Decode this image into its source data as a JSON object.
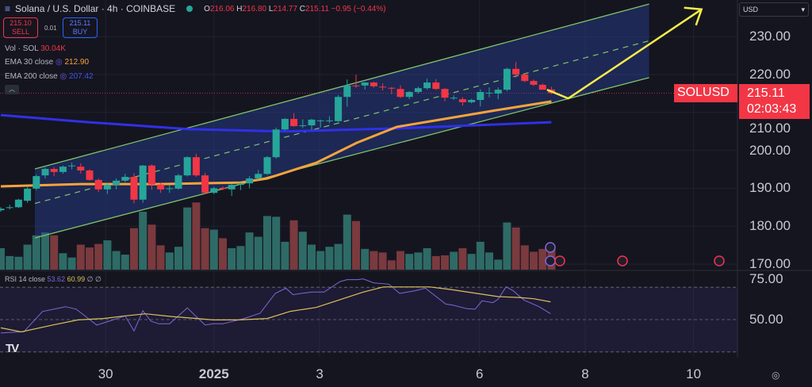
{
  "header": {
    "symbol": "Solana / U.S. Dollar · 4h · COINBASE",
    "o_label": "O",
    "o": "216.06",
    "h_label": "H",
    "h": "216.80",
    "l_label": "L",
    "l": "214.77",
    "c_label": "C",
    "c": "215.11",
    "change": "−0.95 (−0.44%)"
  },
  "trade": {
    "sell_price": "215.10",
    "sell_label": "SELL",
    "spread": "0.01",
    "buy_price": "215.11",
    "buy_label": "BUY"
  },
  "indicators": {
    "vol_label": "Vol · SOL",
    "vol_value": "30.04K",
    "ema30_label": "EMA 30 close",
    "ema30_value": "212.90",
    "ema200_label": "EMA 200 close",
    "ema200_value": "207.42",
    "rsi_label": "RSI 14 close",
    "rsi_value": "53.62",
    "rsi_ma_value": "60.99",
    "rsi_extra": "∅ ∅"
  },
  "currency": "USD",
  "price_tag": {
    "symbol": "SOLUSD",
    "price": "215.11",
    "countdown": "02:03:43"
  },
  "colors": {
    "up": "#26a69a",
    "down": "#f23645",
    "ema30": "#f7a43b",
    "ema200": "#3030e8",
    "channel": "#7fc56a",
    "arrow": "#f5ec4a",
    "rsi": "#7e68d8",
    "rsi_ma": "#d9c25a"
  },
  "icons": [
    "menu-icon",
    "market-status-icon",
    "settings-icon",
    "collapse-icon",
    "tradingview-logo",
    "us-flag-icon",
    "event-icon"
  ],
  "chart_data": {
    "type": "candlestick",
    "interval": "4h",
    "price_axis": {
      "ticks": [
        "230.00",
        "220.00",
        "210.00",
        "200.00",
        "190.00",
        "180.00",
        "170.00"
      ],
      "range": [
        168,
        241
      ]
    },
    "time_axis": {
      "ticks": [
        {
          "label": "30",
          "index": 11.8
        },
        {
          "label": "2025",
          "index": 24
        },
        {
          "label": "3",
          "index": 35.9
        },
        {
          "label": "6",
          "index": 53.9
        },
        {
          "label": "8",
          "index": 65.8
        },
        {
          "label": "10",
          "index": 78
        }
      ]
    },
    "ohlc": [
      [
        184.2,
        185.0,
        183.8,
        184.6
      ],
      [
        185.0,
        185.6,
        184.4,
        185.0
      ],
      [
        185.0,
        187.2,
        184.8,
        187.0
      ],
      [
        186.7,
        190.6,
        186.2,
        189.9
      ],
      [
        189.9,
        193.6,
        189.5,
        193.2
      ],
      [
        193.4,
        195.5,
        192.6,
        195.1
      ],
      [
        195.1,
        195.6,
        193.2,
        194.3
      ],
      [
        194.3,
        196.0,
        193.8,
        195.7
      ],
      [
        195.8,
        196.8,
        195.0,
        196.0
      ],
      [
        195.7,
        196.6,
        193.9,
        194.7
      ],
      [
        194.7,
        195.0,
        192.0,
        192.2
      ],
      [
        192.2,
        192.6,
        189.0,
        189.7
      ],
      [
        189.7,
        191.5,
        188.5,
        190.9
      ],
      [
        190.9,
        192.6,
        189.7,
        192.0
      ],
      [
        192.0,
        193.8,
        191.6,
        193.0
      ],
      [
        193.0,
        194.0,
        186.0,
        187.0
      ],
      [
        187.0,
        196.1,
        186.2,
        196.0
      ],
      [
        196.0,
        196.3,
        189.6,
        191.0
      ],
      [
        191.0,
        191.4,
        188.8,
        189.7
      ],
      [
        189.8,
        190.8,
        188.8,
        190.0
      ],
      [
        189.9,
        193.8,
        189.6,
        193.4
      ],
      [
        193.4,
        198.4,
        193.1,
        198.2
      ],
      [
        198.2,
        199.1,
        193.0,
        193.4
      ],
      [
        193.4,
        194.1,
        188.5,
        188.8
      ],
      [
        188.8,
        190.4,
        188.5,
        190.0
      ],
      [
        190.1,
        190.5,
        189.5,
        189.8
      ],
      [
        189.7,
        191.1,
        188.0,
        190.9
      ],
      [
        190.9,
        191.5,
        189.5,
        191.3
      ],
      [
        191.3,
        193.2,
        190.0,
        192.6
      ],
      [
        192.6,
        194.8,
        192.3,
        193.8
      ],
      [
        193.8,
        198.5,
        193.5,
        198.2
      ],
      [
        198.2,
        206.0,
        197.8,
        205.5
      ],
      [
        205.5,
        208.5,
        205.2,
        208.3
      ],
      [
        208.3,
        209.8,
        206.2,
        206.4
      ],
      [
        206.5,
        208.2,
        205.9,
        206.6
      ],
      [
        206.6,
        208.3,
        205.4,
        208.1
      ],
      [
        207.9,
        208.1,
        206.0,
        207.9
      ],
      [
        207.8,
        209.0,
        207.2,
        207.9
      ],
      [
        207.7,
        214.6,
        207.5,
        214.1
      ],
      [
        214.1,
        218.7,
        211.5,
        217.1
      ],
      [
        217.1,
        220.0,
        216.5,
        216.9
      ],
      [
        217.1,
        218.0,
        216.0,
        217.9
      ],
      [
        217.9,
        218.1,
        216.5,
        216.9
      ],
      [
        216.8,
        217.7,
        215.8,
        216.6
      ],
      [
        216.5,
        216.7,
        214.8,
        216.4
      ],
      [
        216.2,
        217.2,
        213.8,
        214.1
      ],
      [
        214.1,
        215.6,
        213.5,
        215.4
      ],
      [
        215.4,
        216.8,
        215.0,
        216.4
      ],
      [
        216.4,
        218.9,
        216.0,
        217.9
      ],
      [
        217.9,
        218.8,
        215.9,
        216.2
      ],
      [
        216.2,
        216.4,
        212.9,
        213.9
      ],
      [
        213.9,
        214.5,
        213.3,
        213.9
      ],
      [
        213.5,
        214.0,
        211.8,
        212.7
      ],
      [
        212.7,
        213.6,
        212.4,
        213.3
      ],
      [
        213.3,
        216.1,
        211.6,
        215.4
      ],
      [
        215.2,
        216.6,
        214.0,
        215.2
      ],
      [
        215.0,
        216.6,
        213.5,
        216.0
      ],
      [
        216.0,
        221.8,
        215.6,
        221.5
      ],
      [
        221.5,
        223.3,
        219.2,
        220.0
      ],
      [
        220.0,
        220.4,
        218.0,
        218.3
      ],
      [
        218.3,
        218.7,
        217.0,
        217.3
      ],
      [
        217.3,
        217.6,
        216.0,
        216.0
      ],
      [
        216.06,
        216.8,
        214.77,
        215.11
      ]
    ],
    "volume_k": [
      30,
      19,
      18,
      35,
      48,
      52,
      48,
      23,
      17,
      35,
      31,
      36,
      41,
      26,
      21,
      58,
      81,
      63,
      34,
      24,
      32,
      87,
      94,
      58,
      56,
      44,
      30,
      33,
      52,
      46,
      75,
      74,
      39,
      69,
      53,
      35,
      26,
      32,
      36,
      77,
      68,
      29,
      26,
      24,
      13,
      26,
      22,
      24,
      30,
      19,
      20,
      25,
      30,
      22,
      39,
      24,
      14,
      66,
      59,
      34,
      25,
      29,
      30.04
    ],
    "ema30": [
      [
        0,
        190.5
      ],
      [
        9,
        191.1
      ],
      [
        18,
        191.1
      ],
      [
        27,
        191.5
      ],
      [
        30,
        192.6
      ],
      [
        35.6,
        196.8
      ],
      [
        40.1,
        202
      ],
      [
        44.6,
        206.2
      ],
      [
        50,
        208.3
      ],
      [
        55.3,
        210.4
      ],
      [
        62,
        212.9
      ]
    ],
    "ema200": [
      [
        0,
        209.3
      ],
      [
        10,
        207.4
      ],
      [
        21,
        205.6
      ],
      [
        32,
        205
      ],
      [
        44.6,
        205.8
      ],
      [
        62,
        207.42
      ]
    ],
    "channel": {
      "upper": [
        [
          3.84,
          195.1
        ],
        [
          73,
          238.6
        ]
      ],
      "lower": [
        [
          3.84,
          176.9
        ],
        [
          73,
          219.2
        ]
      ]
    },
    "arrow": [
      [
        61.5,
        216.0
      ],
      [
        63.9,
        213.7
      ],
      [
        78.9,
        237.2
      ]
    ],
    "rsi": {
      "levels": [
        70,
        50,
        30
      ],
      "ticks": [
        "75.00",
        "50.00"
      ],
      "range": [
        29,
        77
      ],
      "line": [
        [
          0,
          41.7
        ],
        [
          2.6,
          42.5
        ],
        [
          4.7,
          55
        ],
        [
          7.3,
          58
        ],
        [
          8.5,
          56.4
        ],
        [
          10.8,
          46.6
        ],
        [
          12.2,
          49
        ],
        [
          14,
          52.3
        ],
        [
          15,
          43
        ],
        [
          16,
          55.5
        ],
        [
          16.9,
          49
        ],
        [
          17.8,
          47.4
        ],
        [
          19,
          47.4
        ],
        [
          21,
          57.2
        ],
        [
          23,
          46.6
        ],
        [
          23.9,
          47.4
        ],
        [
          25,
          47.4
        ],
        [
          27.4,
          50.7
        ],
        [
          29.2,
          53.9
        ],
        [
          30.9,
          66.2
        ],
        [
          32.1,
          69.4
        ],
        [
          32.9,
          65.4
        ],
        [
          33.8,
          66.2
        ],
        [
          35,
          67
        ],
        [
          36.4,
          67
        ],
        [
          38.2,
          73.5
        ],
        [
          39,
          74.7
        ],
        [
          40.2,
          74.7
        ],
        [
          40.8,
          75.2
        ],
        [
          42,
          72.7
        ],
        [
          43.7,
          71.9
        ],
        [
          44.9,
          66.2
        ],
        [
          46.6,
          67.8
        ],
        [
          47.8,
          69.4
        ],
        [
          50.1,
          59.6
        ],
        [
          51,
          58.8
        ],
        [
          52.5,
          56.7
        ],
        [
          53.4,
          56.4
        ],
        [
          54.2,
          61.6
        ],
        [
          55.4,
          60.5
        ],
        [
          56,
          62.6
        ],
        [
          56.9,
          70.3
        ],
        [
          57.7,
          67.8
        ],
        [
          58.9,
          62.1
        ],
        [
          60.6,
          58
        ],
        [
          61.9,
          53.62
        ]
      ],
      "ma": [
        [
          0,
          44.9
        ],
        [
          2.3,
          42.4
        ],
        [
          5.8,
          46.6
        ],
        [
          8.7,
          49.8
        ],
        [
          11.6,
          50.7
        ],
        [
          14,
          52.3
        ],
        [
          16.3,
          53.6
        ],
        [
          19.2,
          51.9
        ],
        [
          22.1,
          50.7
        ],
        [
          23.9,
          49.8
        ],
        [
          26.8,
          49.8
        ],
        [
          30,
          50.7
        ],
        [
          32.6,
          55.1
        ],
        [
          35.5,
          57.5
        ],
        [
          37.8,
          61.6
        ],
        [
          40.8,
          67
        ],
        [
          43.1,
          70.2
        ],
        [
          45.4,
          70.2
        ],
        [
          48.3,
          70.2
        ],
        [
          50.7,
          68.6
        ],
        [
          53.6,
          66.2
        ],
        [
          56,
          64.2
        ],
        [
          58.3,
          63.7
        ],
        [
          60,
          62.9
        ],
        [
          61.9,
          60.99
        ]
      ]
    }
  }
}
